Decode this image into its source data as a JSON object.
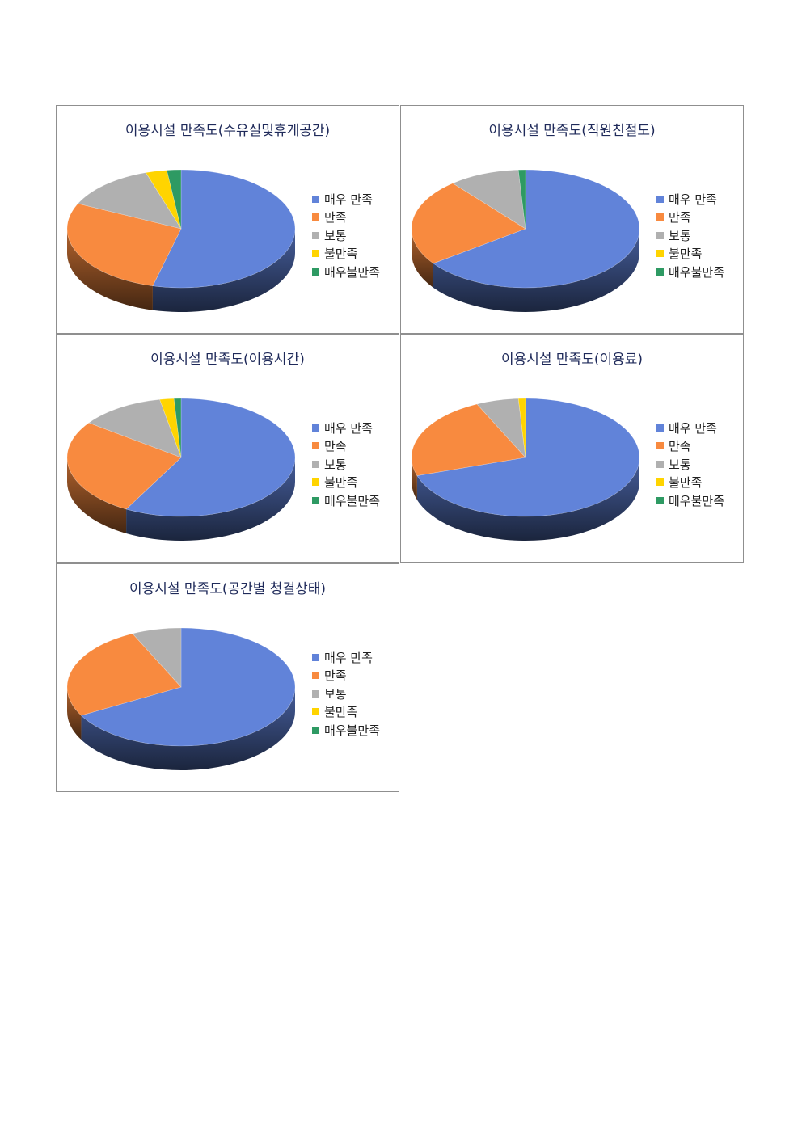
{
  "legend_labels": [
    "매우 만족",
    "만족",
    "보통",
    "불만족",
    "매우불만족"
  ],
  "colors": {
    "very_satisfied": "#6183d9",
    "satisfied": "#f88a3f",
    "neutral": "#b0b0b0",
    "dissatisfied": "#ffd400",
    "very_dissatisfied": "#2e9a63"
  },
  "chart_data": [
    {
      "type": "pie",
      "title": "이용시설 만족도(수유실및휴게공간)",
      "categories": [
        "매우 만족",
        "만족",
        "보통",
        "불만족",
        "매우불만족"
      ],
      "values": [
        54,
        28,
        13,
        3,
        2
      ],
      "legend_position": "right",
      "style": "3d"
    },
    {
      "type": "pie",
      "title": "이용시설 만족도(직원친절도)",
      "categories": [
        "매우 만족",
        "만족",
        "보통",
        "불만족",
        "매우불만족"
      ],
      "values": [
        65,
        24,
        10,
        0,
        1
      ],
      "legend_position": "right",
      "style": "3d"
    },
    {
      "type": "pie",
      "title": "이용시설 만족도(이용시간)",
      "categories": [
        "매우 만족",
        "만족",
        "보통",
        "불만족",
        "매우불만족"
      ],
      "values": [
        58,
        27,
        12,
        2,
        1
      ],
      "legend_position": "right",
      "style": "3d"
    },
    {
      "type": "pie",
      "title": "이용시설 만족도(이용료)",
      "categories": [
        "매우 만족",
        "만족",
        "보통",
        "불만족",
        "매우불만족"
      ],
      "values": [
        70,
        23,
        6,
        1,
        0
      ],
      "legend_position": "right",
      "style": "3d"
    },
    {
      "type": "pie",
      "title": "이용시설 만족도(공간별 청결상태)",
      "categories": [
        "매우 만족",
        "만족",
        "보통",
        "불만족",
        "매우불만족"
      ],
      "values": [
        67,
        26,
        7,
        0,
        0
      ],
      "legend_position": "right",
      "style": "3d"
    }
  ]
}
